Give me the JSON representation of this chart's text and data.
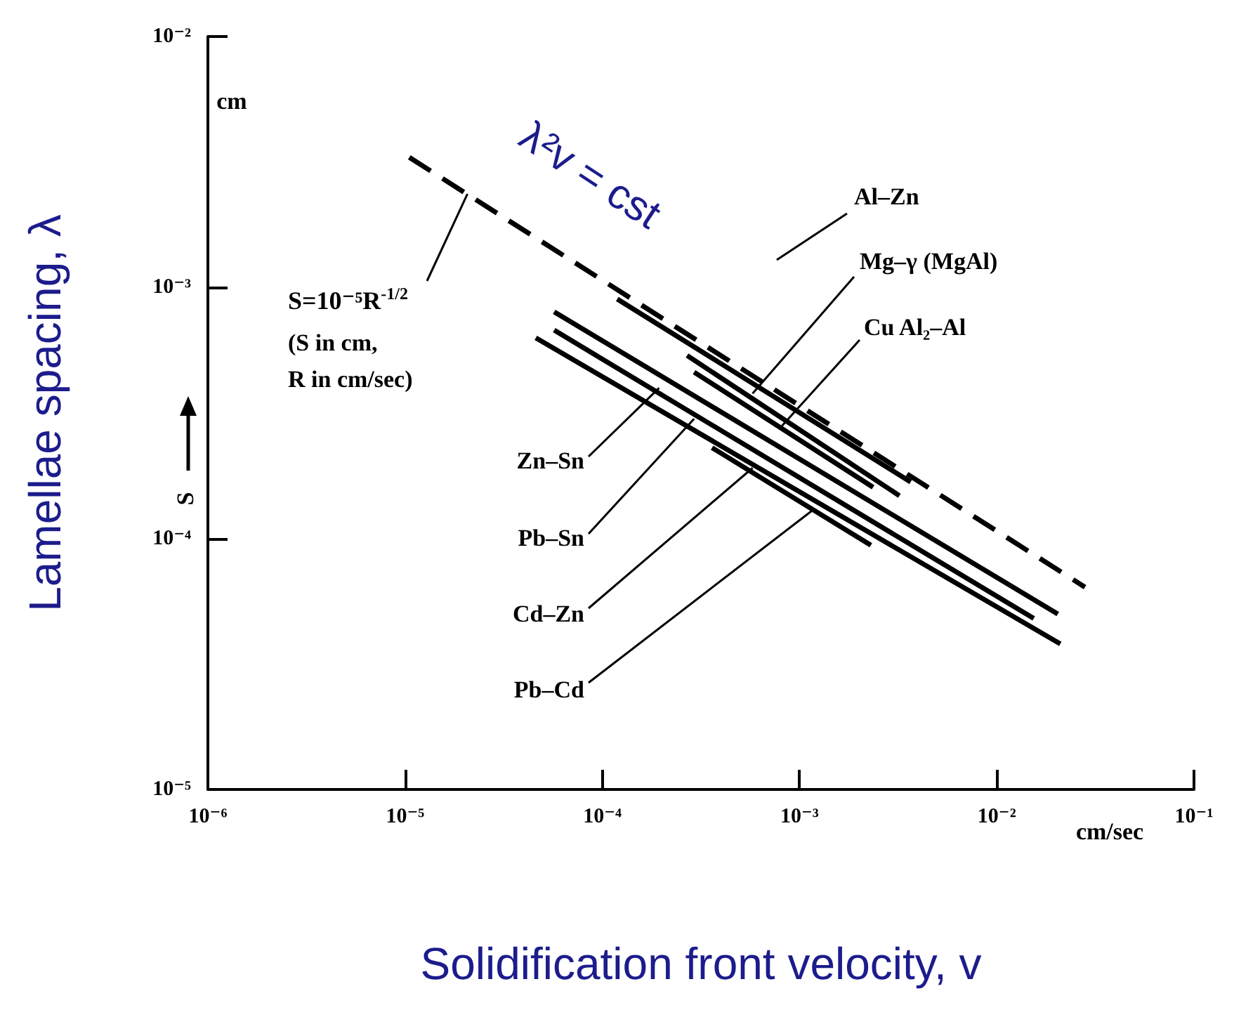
{
  "chart_data": {
    "type": "line",
    "xlabel": "Solidification front velocity, v",
    "ylabel": "Lamellae spacing, λ",
    "log": "xy",
    "xlim": [
      1e-06,
      0.1
    ],
    "ylim": [
      1e-05,
      0.01
    ],
    "xticks": [
      {
        "value": 1e-06,
        "label": "10⁻⁶"
      },
      {
        "value": 1e-05,
        "label": "10⁻⁵"
      },
      {
        "value": 0.0001,
        "label": "10⁻⁴"
      },
      {
        "value": 0.001,
        "label": "10⁻³"
      },
      {
        "value": 0.01,
        "label": "10⁻²"
      },
      {
        "value": 0.1,
        "label": "10⁻¹"
      }
    ],
    "yticks": [
      {
        "value": 1e-05,
        "label": "10⁻⁵"
      },
      {
        "value": 0.0001,
        "label": "10⁻⁴"
      },
      {
        "value": 0.001,
        "label": "10⁻³"
      },
      {
        "value": 0.01,
        "label": "10⁻²"
      }
    ],
    "grid": false,
    "legend": false,
    "marker": "none",
    "series": [
      {
        "color": "#000000",
        "line_style": "dashed",
        "x": [
          1.05e-05,
          0.028
        ],
        "values": [
          0.0033,
          6.4e-05
        ]
      },
      {
        "color": "#000000",
        "line_style": "solid",
        "x": [
          0.000119,
          0.00366
        ],
        "values": [
          0.0009,
          0.000168
        ]
      },
      {
        "color": "#000000",
        "line_style": "solid",
        "x": [
          0.000269,
          0.00321
        ],
        "values": [
          0.000536,
          0.000148
        ]
      },
      {
        "color": "#000000",
        "line_style": "solid",
        "x": [
          0.000292,
          0.00236
        ],
        "values": [
          0.00046,
          0.00016
        ]
      },
      {
        "color": "#000000",
        "line_style": "solid",
        "x": [
          5.7e-05,
          0.0204
        ],
        "values": [
          0.0008,
          5e-05
        ]
      },
      {
        "color": "#000000",
        "line_style": "solid",
        "x": [
          5.7e-05,
          0.0154
        ],
        "values": [
          0.000676,
          4.8e-05
        ]
      },
      {
        "color": "#000000",
        "line_style": "solid",
        "x": [
          4.6e-05,
          0.021
        ],
        "values": [
          0.00063,
          3.8e-05
        ]
      },
      {
        "color": "#000000",
        "line_style": "solid",
        "x": [
          0.00036,
          0.0023
        ],
        "values": [
          0.00023,
          9.4e-05
        ]
      }
    ],
    "annotations": [
      "cm",
      {
        "text": "S=10⁻⁵R$^{-1/2}$",
        "x": 2.07e-05,
        "y": 0.00236
      },
      "(S in cm,",
      "R in cm/sec)",
      "λ²v = cst",
      "S",
      "cm/sec",
      "Al–Zn",
      {
        "text": "Mg–γ (MgAl)",
        "x": 0.000578,
        "y": 0.000378
      },
      {
        "text": "Cu Al₂–Al",
        "x": 0.000815,
        "y": 0.000281
      },
      {
        "text": "Zn–Sn",
        "x": 0.000194,
        "y": 0.000398
      },
      {
        "text": "Pb–Sn",
        "x": 0.000292,
        "y": 0.0003
      },
      {
        "text": "Cd–Zn",
        "x": 0.000578,
        "y": 0.000191
      },
      {
        "text": "Pb–Cd",
        "x": 0.00117,
        "y": 0.00013
      }
    ]
  }
}
